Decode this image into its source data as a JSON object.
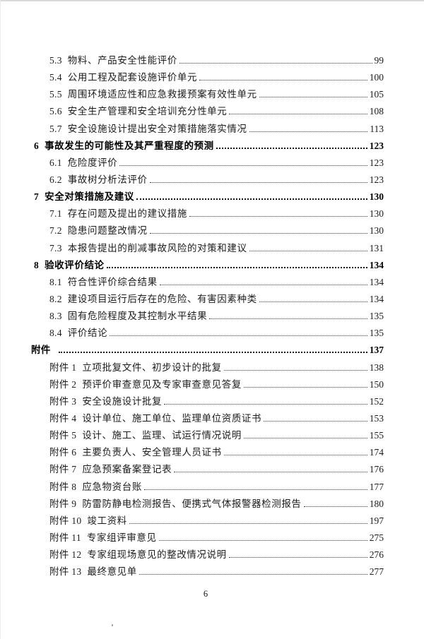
{
  "document": {
    "footer": {
      "page_number": "6"
    },
    "toc": {
      "items": [
        {
          "level": "sub",
          "label": "5.3",
          "title": "物料、产品安全性能评价",
          "page": "99"
        },
        {
          "level": "sub",
          "label": "5.4",
          "title": "公用工程及配套设施评价单元",
          "page": "100"
        },
        {
          "level": "sub",
          "label": "5.5",
          "title": "周围环境适应性和应急救援预案有效性单元",
          "page": "105"
        },
        {
          "level": "sub",
          "label": "5.6",
          "title": "安全生产管理和安全培训充分性单元",
          "page": "108"
        },
        {
          "level": "sub",
          "label": "5.7",
          "title": "安全设施设计提出安全对策措施落实情况",
          "page": "113"
        },
        {
          "level": "top",
          "label": "6",
          "title": "事故发生的可能性及其严重程度的预测",
          "page": "123"
        },
        {
          "level": "sub",
          "label": "6.1",
          "title": "危险度评价",
          "page": "123"
        },
        {
          "level": "sub",
          "label": "6.2",
          "title": "事故树分析法评价",
          "page": "123"
        },
        {
          "level": "top",
          "label": "7",
          "title": "安全对策措施及建议",
          "page": "130"
        },
        {
          "level": "sub",
          "label": "7.1",
          "title": "存在问题及提出的建议措施",
          "page": "130"
        },
        {
          "level": "sub",
          "label": "7.2",
          "title": "隐患问题整改情况",
          "page": "130"
        },
        {
          "level": "sub",
          "label": "7.3",
          "title": "本报告提出的削减事故风险的对策和建议",
          "page": "131"
        },
        {
          "level": "top",
          "label": "8",
          "title": "验收评价结论",
          "page": "134"
        },
        {
          "level": "sub",
          "label": "8.1",
          "title": "符合性评价综合结果",
          "page": "134"
        },
        {
          "level": "sub",
          "label": "8.2",
          "title": "建设项目运行后存在的危险、有害因素种类",
          "page": "134"
        },
        {
          "level": "sub",
          "label": "8.3",
          "title": "固有危险程度及其控制水平结果",
          "page": "135"
        },
        {
          "level": "sub",
          "label": "8.4",
          "title": "评价结论",
          "page": "135"
        },
        {
          "level": "top",
          "label": "附件",
          "title": "",
          "page": "137"
        },
        {
          "level": "sub",
          "label": "附件 1",
          "title": "立项批复文件、初步设计的批复",
          "page": "138"
        },
        {
          "level": "sub",
          "label": "附件 2",
          "title": "预评价审查意见及专家审查意见答复",
          "page": "150"
        },
        {
          "level": "sub",
          "label": "附件 3",
          "title": "安全设施设计批复",
          "page": "152"
        },
        {
          "level": "sub",
          "label": "附件 4",
          "title": "设计单位、施工单位、监理单位资质证书",
          "page": "153"
        },
        {
          "level": "sub",
          "label": "附件 5",
          "title": "设计、施工、监理、试运行情况说明",
          "page": "155"
        },
        {
          "level": "sub",
          "label": "附件 6",
          "title": "主要负责人、安全管理人员证书",
          "page": "174"
        },
        {
          "level": "sub",
          "label": "附件 7",
          "title": "应急预案备案登记表",
          "page": "176"
        },
        {
          "level": "sub",
          "label": "附件 8",
          "title": "应急物资台账",
          "page": "177"
        },
        {
          "level": "sub",
          "label": "附件 9",
          "title": "防雷防静电检测报告、便携式气体报警器检测报告",
          "page": "180"
        },
        {
          "level": "sub",
          "label": "附件 10",
          "title": "竣工资料",
          "page": "197"
        },
        {
          "level": "sub",
          "label": "附件 11",
          "title": "专家组评审意见",
          "page": "275"
        },
        {
          "level": "sub",
          "label": "附件 12",
          "title": "专家组现场意见的整改情况说明",
          "page": "276"
        },
        {
          "level": "sub",
          "label": "附件 13",
          "title": "最终意见单",
          "page": "277"
        }
      ]
    }
  }
}
